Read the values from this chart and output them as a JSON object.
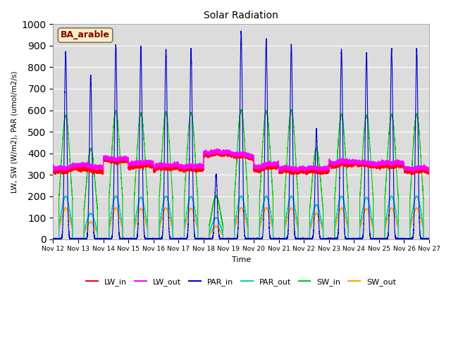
{
  "title": "Solar Radiation",
  "xlabel": "Time",
  "ylabel": "LW, SW (W/m2), PAR (umol/m2/s)",
  "ylim": [
    0,
    1000
  ],
  "annotation": "BA_arable",
  "annotation_color": "#8B0000",
  "annotation_bg": "#F5F0C8",
  "annotation_border": "#8B7355",
  "series": {
    "LW_in": {
      "color": "#FF0000",
      "lw": 0.8
    },
    "LW_out": {
      "color": "#FF00FF",
      "lw": 0.8
    },
    "PAR_in": {
      "color": "#0000CD",
      "lw": 0.8
    },
    "PAR_out": {
      "color": "#00CCCC",
      "lw": 0.8
    },
    "SW_in": {
      "color": "#00CC00",
      "lw": 0.8
    },
    "SW_out": {
      "color": "#FFA500",
      "lw": 0.8
    }
  },
  "background_color": "#DCDCDC",
  "fig_bg": "#FFFFFF",
  "start_day": 12,
  "n_days": 15,
  "points_per_day": 1440,
  "par_peaks": [
    870,
    760,
    905,
    895,
    880,
    885,
    300,
    965,
    930,
    905,
    510,
    880,
    865,
    885,
    885
  ],
  "sw_peaks": [
    575,
    420,
    595,
    585,
    590,
    588,
    200,
    600,
    595,
    600,
    420,
    580,
    575,
    580,
    580
  ],
  "par_out_peaks": [
    200,
    120,
    200,
    195,
    200,
    198,
    100,
    200,
    200,
    200,
    160,
    200,
    195,
    200,
    200
  ],
  "sw_out_peaks": [
    145,
    80,
    145,
    142,
    145,
    143,
    60,
    145,
    145,
    145,
    120,
    145,
    142,
    145,
    145
  ],
  "lw_in_vals": [
    320,
    320,
    365,
    340,
    330,
    325,
    395,
    385,
    330,
    315,
    315,
    345,
    345,
    340,
    315
  ],
  "lw_out_vals": [
    335,
    340,
    375,
    355,
    345,
    340,
    405,
    395,
    345,
    330,
    330,
    360,
    355,
    355,
    330
  ],
  "figsize": [
    6.4,
    4.8
  ],
  "dpi": 100
}
